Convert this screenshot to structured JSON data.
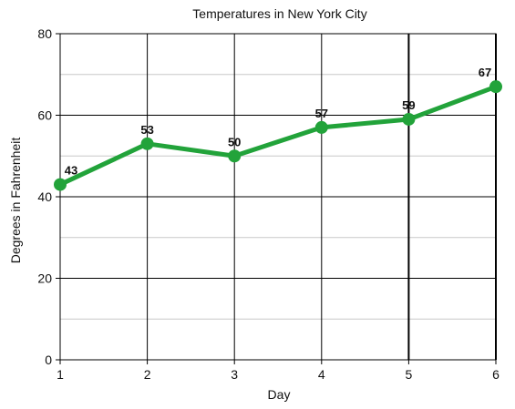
{
  "chart_data": {
    "type": "line",
    "title": "Temperatures in New York City",
    "xlabel": "Day",
    "ylabel": "Degrees in Fahrenheit",
    "x": [
      1,
      2,
      3,
      4,
      5,
      6
    ],
    "series": [
      {
        "values": [
          43,
          53,
          50,
          57,
          59,
          67
        ]
      }
    ],
    "xlim": [
      1,
      6
    ],
    "ylim": [
      0,
      80
    ],
    "yticks": [
      0,
      20,
      40,
      60,
      80
    ],
    "xticks": [
      1,
      2,
      3,
      4,
      5,
      6
    ],
    "grid": true,
    "line_color": "#22a33a",
    "legend": "none"
  }
}
